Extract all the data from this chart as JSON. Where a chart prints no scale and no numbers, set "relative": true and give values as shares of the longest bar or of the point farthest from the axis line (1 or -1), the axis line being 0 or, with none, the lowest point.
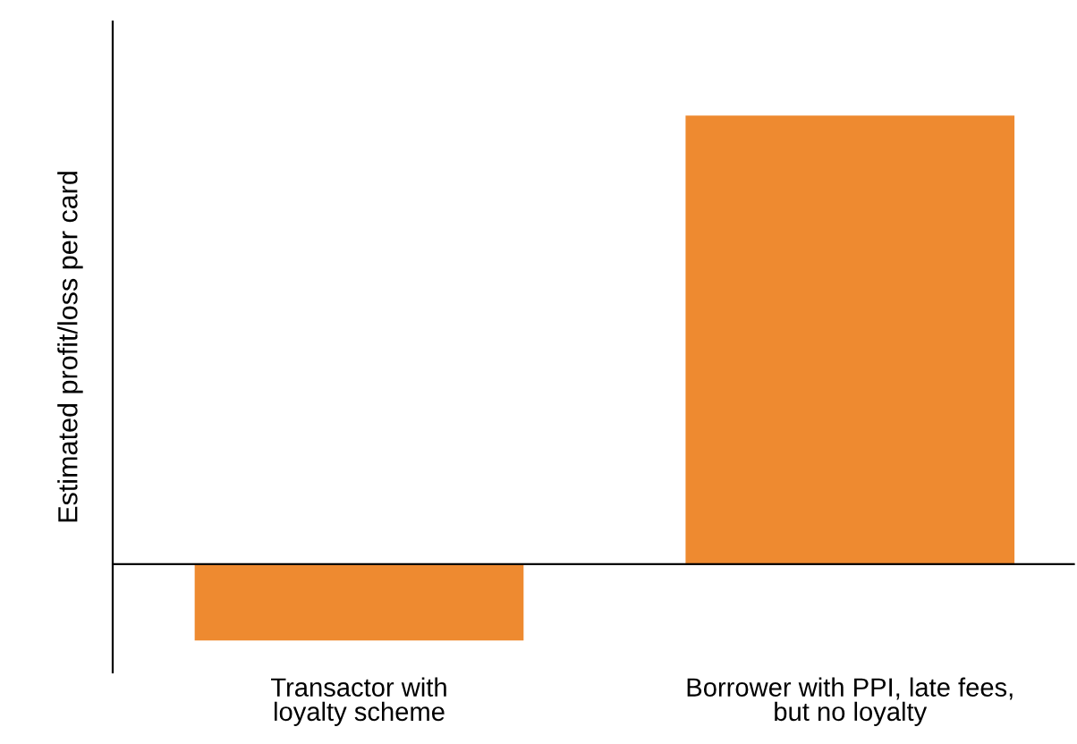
{
  "chart_data": {
    "type": "bar",
    "relative": true,
    "ylabel": "Estimated profit/loss per card",
    "categories": [
      "Transactor with\nloyalty scheme",
      "Borrower with PPI, late fees,\nbut no loyalty"
    ],
    "values": [
      -0.17,
      1
    ],
    "color": "#ee8a30"
  }
}
